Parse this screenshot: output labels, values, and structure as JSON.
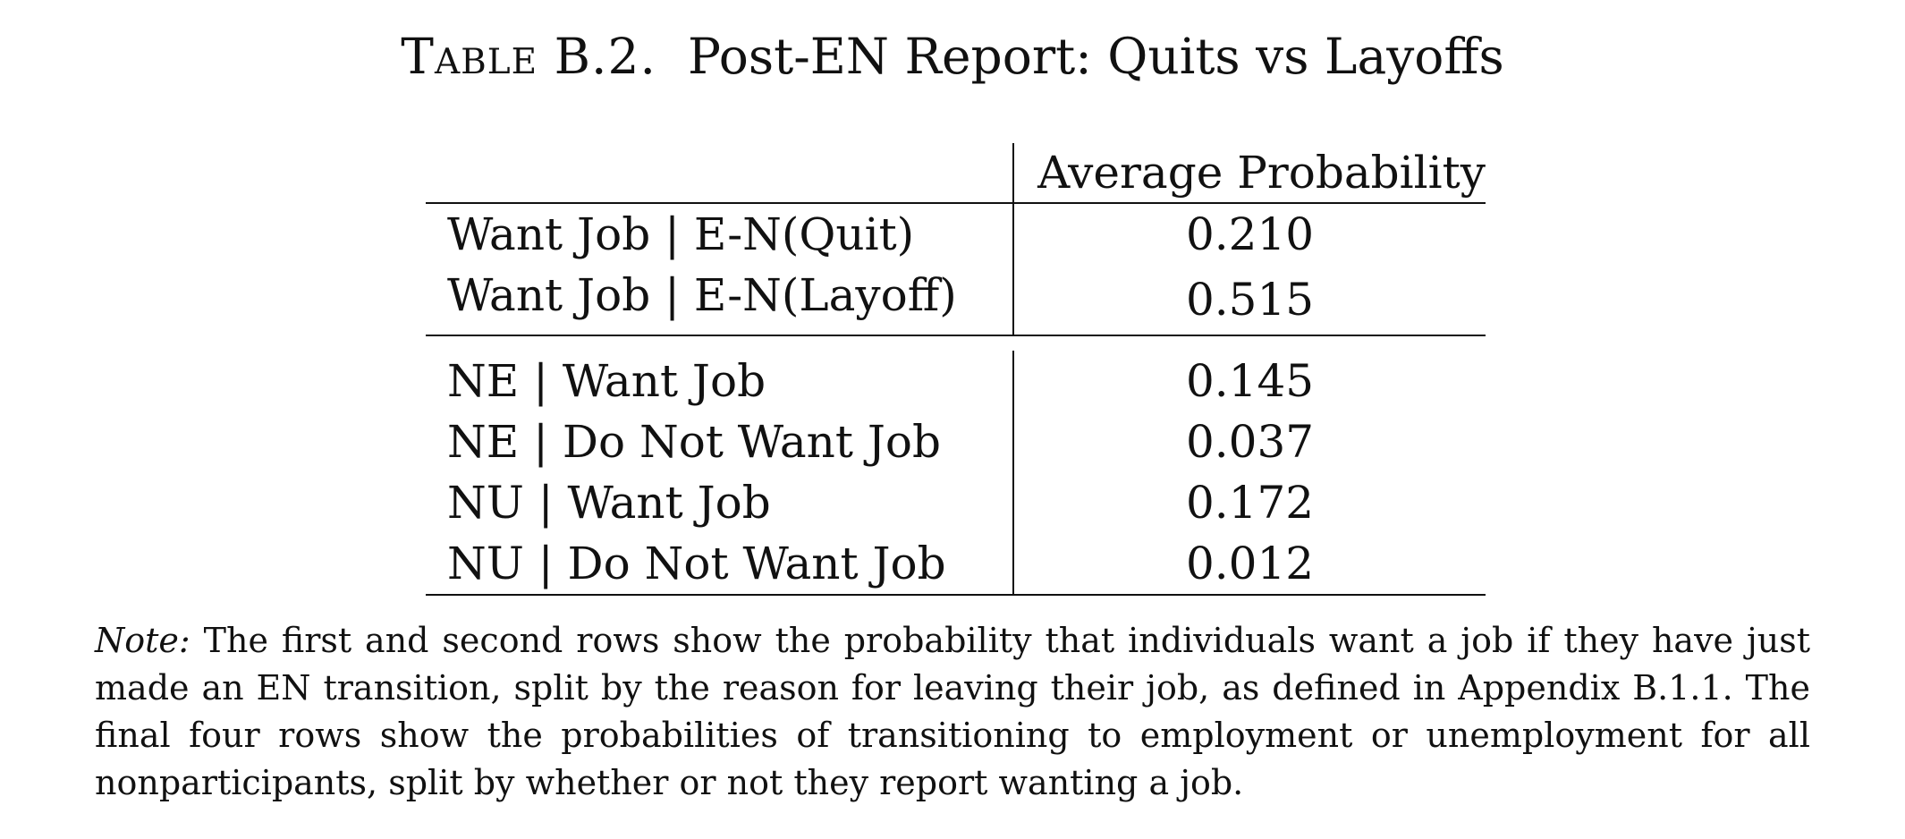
{
  "caption": {
    "label": "Table B.2.",
    "title": "Post-EN Report: Quits vs Layoffs"
  },
  "table": {
    "column_header": "Average Probability",
    "blocks": [
      {
        "rows": [
          {
            "label": "Want Job | E-N(Quit)",
            "value": "0.210"
          },
          {
            "label": "Want Job | E-N(Layoff)",
            "value": "0.515"
          }
        ]
      },
      {
        "rows": [
          {
            "label": "NE | Want Job",
            "value": "0.145"
          },
          {
            "label": "NE | Do Not Want Job",
            "value": "0.037"
          },
          {
            "label": "NU | Want Job",
            "value": "0.172"
          },
          {
            "label": "NU | Do Not Want Job",
            "value": "0.012"
          }
        ]
      }
    ]
  },
  "note": {
    "label": "Note:",
    "text": "The first and second rows show the probability that individuals want a job if they have just made an EN transition, split by the reason for leaving their job, as defined in Appendix B.1.1. The final four rows show the probabilities of transitioning to employment or unemployment for all nonparticipants, split by whether or not they report wanting a job."
  }
}
